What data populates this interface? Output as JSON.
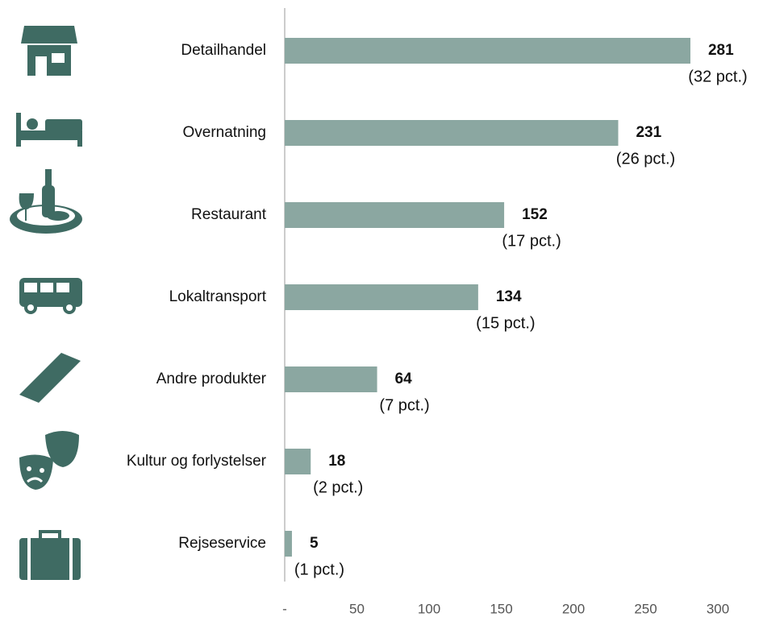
{
  "chart_data": {
    "type": "bar",
    "orientation": "horizontal",
    "categories": [
      "Detailhandel",
      "Overnatning",
      "Restaurant",
      "Lokaltransport",
      "Andre produkter",
      "Kultur og forlystelser",
      "Rejseservice"
    ],
    "values": [
      281,
      231,
      152,
      134,
      64,
      18,
      5
    ],
    "share_labels": [
      "(32 pct.)",
      "(26 pct.)",
      "(17 pct.)",
      "(15 pct.)",
      "(7 pct.)",
      "(2 pct.)",
      "(1 pct.)"
    ],
    "color": "#8ba7a1",
    "xlim": [
      0,
      300
    ],
    "xticks": [
      {
        "value": 0,
        "label": "-"
      },
      50,
      100,
      150,
      200,
      250,
      300
    ],
    "grid": false
  }
}
